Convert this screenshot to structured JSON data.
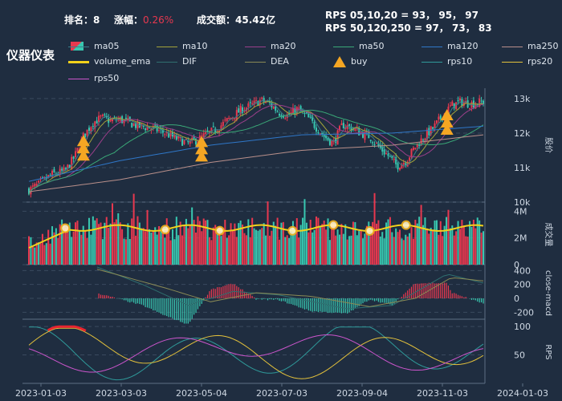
{
  "header": {
    "rank_label": "排名：",
    "rank_value": "8",
    "change_label": "涨幅：",
    "change_value": "0.26%",
    "turnover_label": "成交额：",
    "turnover_value": "45.42亿",
    "rps_line1": "RPS 05,10,20 = 93， 95， 97",
    "rps_line2": "RPS 50,120,250 = 97， 73， 83"
  },
  "title": "仪器仪表",
  "legend": [
    {
      "name": "ma05",
      "color": "#3a7e8a",
      "kind": "line"
    },
    {
      "name": "ma10",
      "color": "#a3a33a",
      "kind": "line"
    },
    {
      "name": "ma20",
      "color": "#9b3f8a",
      "kind": "line"
    },
    {
      "name": "ma50",
      "color": "#3aa877",
      "kind": "line"
    },
    {
      "name": "ma120",
      "color": "#2f77c8",
      "kind": "line"
    },
    {
      "name": "ma250",
      "color": "#b88f8a",
      "kind": "line"
    },
    {
      "name": "volume_ema",
      "color": "#f2d21b",
      "kind": "thick"
    },
    {
      "name": "DIF",
      "color": "#2f6f6f",
      "kind": "line"
    },
    {
      "name": "DEA",
      "color": "#8a8a55",
      "kind": "line"
    },
    {
      "name": "buy",
      "color": "#f5a623",
      "kind": "triangle"
    },
    {
      "name": "rps10",
      "color": "#2f9a9a",
      "kind": "line"
    },
    {
      "name": "rps20",
      "color": "#e3c13b",
      "kind": "line"
    },
    {
      "name": "rps50",
      "color": "#cc55cc",
      "kind": "line"
    }
  ],
  "colors": {
    "up": "#e8384f",
    "down": "#38c7b0",
    "grid": "#3a4a5e",
    "axis": "#8aa0b5"
  },
  "chart_data": [
    {
      "type": "candlestick",
      "ylabel": "股价",
      "ylim": [
        10000,
        13300
      ],
      "yticks": [
        "13k",
        "12k",
        "11k",
        "10k"
      ],
      "ytick_values": [
        13000,
        12000,
        11000,
        10000
      ],
      "x_dates": [
        "2023-01-03",
        "2023-03-03",
        "2023-05-04",
        "2023-07-03",
        "2023-09-04",
        "2023-11-03",
        "2024-01-03"
      ],
      "close_path": [
        [
          0,
          10350
        ],
        [
          0.02,
          10500
        ],
        [
          0.05,
          10800
        ],
        [
          0.08,
          10900
        ],
        [
          0.1,
          11300
        ],
        [
          0.12,
          11900
        ],
        [
          0.14,
          12300
        ],
        [
          0.16,
          12450
        ],
        [
          0.18,
          12350
        ],
        [
          0.2,
          12400
        ],
        [
          0.22,
          12300
        ],
        [
          0.24,
          12200
        ],
        [
          0.27,
          12150
        ],
        [
          0.3,
          12000
        ],
        [
          0.33,
          11800
        ],
        [
          0.35,
          11700
        ],
        [
          0.37,
          11800
        ],
        [
          0.39,
          11950
        ],
        [
          0.41,
          12100
        ],
        [
          0.43,
          12300
        ],
        [
          0.45,
          12500
        ],
        [
          0.47,
          12700
        ],
        [
          0.49,
          12800
        ],
        [
          0.51,
          12950
        ],
        [
          0.53,
          12850
        ],
        [
          0.55,
          12600
        ],
        [
          0.57,
          12500
        ],
        [
          0.59,
          12700
        ],
        [
          0.61,
          12500
        ],
        [
          0.63,
          12200
        ],
        [
          0.65,
          11900
        ],
        [
          0.67,
          11700
        ],
        [
          0.69,
          12250
        ],
        [
          0.71,
          12150
        ],
        [
          0.73,
          12000
        ],
        [
          0.75,
          11900
        ],
        [
          0.77,
          11600
        ],
        [
          0.79,
          11350
        ],
        [
          0.81,
          11050
        ],
        [
          0.83,
          11200
        ],
        [
          0.85,
          11600
        ],
        [
          0.87,
          11900
        ],
        [
          0.89,
          12150
        ],
        [
          0.91,
          12500
        ],
        [
          0.93,
          12800
        ],
        [
          0.95,
          12900
        ],
        [
          0.97,
          12850
        ],
        [
          1,
          12900
        ]
      ],
      "ma120_path": [
        [
          0,
          10600
        ],
        [
          0.2,
          11200
        ],
        [
          0.4,
          11650
        ],
        [
          0.6,
          11950
        ],
        [
          0.8,
          12000
        ],
        [
          1,
          12200
        ]
      ],
      "ma250_path": [
        [
          0,
          10300
        ],
        [
          0.2,
          10650
        ],
        [
          0.4,
          11150
        ],
        [
          0.6,
          11500
        ],
        [
          0.8,
          11650
        ],
        [
          1,
          11950
        ]
      ],
      "buy_signals": [
        0.12,
        0.38,
        0.92
      ]
    },
    {
      "type": "bar",
      "ylabel": "成交量",
      "ylim": [
        0,
        4500000
      ],
      "yticks": [
        "4M",
        "2M",
        "0"
      ],
      "ytick_values": [
        4000000,
        2000000,
        0
      ],
      "volume_level": 2800000,
      "ema_markers": [
        0.08,
        0.3,
        0.42,
        0.58,
        0.67,
        0.75,
        0.83
      ]
    },
    {
      "type": "line",
      "ylabel": "close-macd",
      "ylim": [
        -300,
        450
      ],
      "yticks": [
        "400",
        "200",
        "0",
        "-200"
      ],
      "ytick_values": [
        400,
        200,
        0,
        -200
      ],
      "dif_path": [
        [
          0.15,
          450
        ],
        [
          0.25,
          200
        ],
        [
          0.35,
          -100
        ],
        [
          0.45,
          100
        ],
        [
          0.55,
          50
        ],
        [
          0.7,
          -150
        ],
        [
          0.8,
          -100
        ],
        [
          0.92,
          350
        ],
        [
          1,
          220
        ]
      ],
      "dea_path": [
        [
          0.15,
          420
        ],
        [
          0.3,
          150
        ],
        [
          0.4,
          -50
        ],
        [
          0.5,
          80
        ],
        [
          0.62,
          30
        ],
        [
          0.75,
          -120
        ],
        [
          0.85,
          0
        ],
        [
          0.93,
          300
        ],
        [
          1,
          250
        ]
      ]
    },
    {
      "type": "line",
      "ylabel": "RPS",
      "ylim": [
        0,
        110
      ],
      "yticks": [
        "100",
        "50"
      ],
      "ytick_values": [
        100,
        50
      ]
    }
  ]
}
